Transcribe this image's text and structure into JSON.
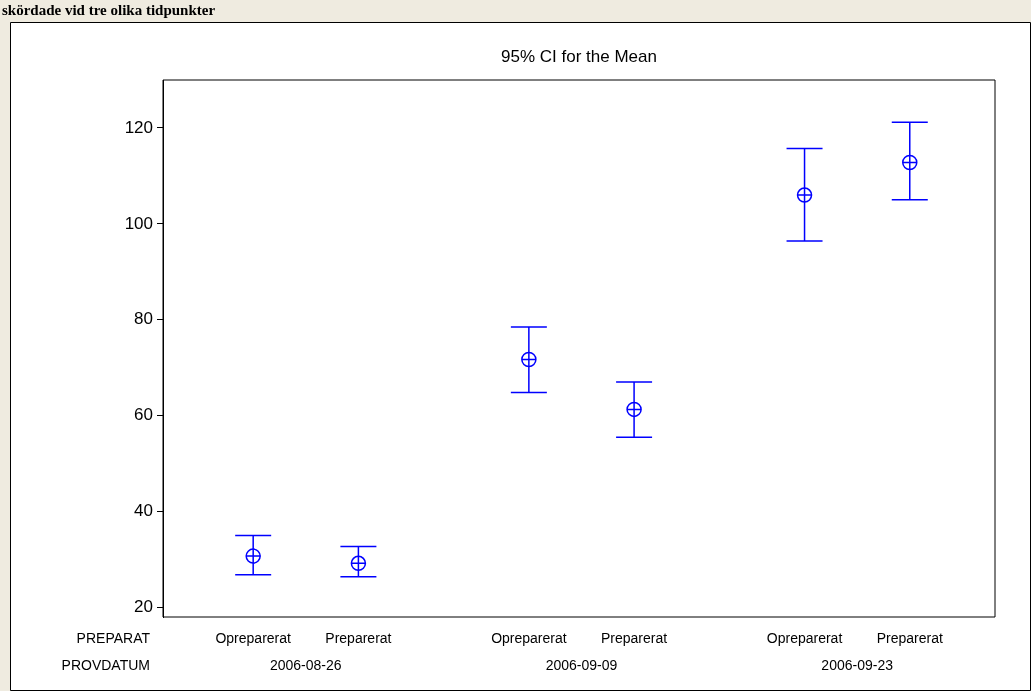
{
  "chart_data": {
    "type": "scatter",
    "title": "95% CI for the Mean",
    "categories": [
      "Opreparerat",
      "Preparerat",
      "Opreparerat",
      "Preparerat",
      "Opreparerat",
      "Preparerat"
    ],
    "series": [
      {
        "color": "#0000ff",
        "values": [
          30.7,
          29.2,
          71.7,
          61.3,
          106.0,
          112.8
        ],
        "errors": [
          [
            26.8,
            35.0
          ],
          [
            26.4,
            32.7
          ],
          [
            64.8,
            78.5
          ],
          [
            55.5,
            67.0
          ],
          [
            96.4,
            115.7
          ],
          [
            105.0,
            121.2
          ]
        ]
      }
    ],
    "ylim": [
      18,
      130
    ],
    "yticks": [
      20,
      40,
      60,
      80,
      100,
      120
    ],
    "grid": false,
    "legend": false,
    "marker": "circle",
    "annotations": [
      "skördade vid tre olika tidpunkter",
      "PREPARAT",
      "PROVDATUM",
      "2006-08-26",
      "2006-09-09",
      "2006-09-23"
    ]
  }
}
